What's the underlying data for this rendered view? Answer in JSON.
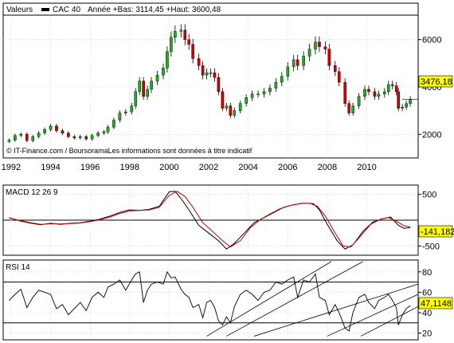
{
  "header": {
    "valeurs_label": "Valeurs",
    "series_name": "CAC 40",
    "range_text": "Année +Bas: 3114,45 +Haut: 3600,48"
  },
  "footer_note": "© IT-Finance.com / BoursoramaLes informations sont données à titre indicatif",
  "colors": {
    "up": "#22aa22",
    "down": "#cc0000",
    "signal": "#cc0000",
    "line": "#000000",
    "badge": "#ffff00"
  },
  "chart_data": [
    {
      "type": "candlestick",
      "title": "CAC 40",
      "x_ticks": [
        "1992",
        "1994",
        "1996",
        "1998",
        "2000",
        "2002",
        "2004",
        "2006",
        "2008",
        "2010"
      ],
      "y_ticks": [
        "2000",
        "4000",
        "6000"
      ],
      "ylim": [
        1000,
        7000
      ],
      "last_value": "3476,18",
      "series": [
        {
          "name": "CAC 40",
          "points": [
            [
              1991.9,
              1750
            ],
            [
              1992.2,
              1950
            ],
            [
              1992.5,
              2000
            ],
            [
              1992.8,
              1730
            ],
            [
              1993.1,
              1900
            ],
            [
              1993.4,
              2050
            ],
            [
              1993.7,
              2200
            ],
            [
              1994.0,
              2350
            ],
            [
              1994.3,
              2150
            ],
            [
              1994.6,
              2050
            ],
            [
              1994.9,
              1900
            ],
            [
              1995.2,
              1850
            ],
            [
              1995.5,
              1900
            ],
            [
              1995.8,
              1800
            ],
            [
              1996.1,
              1950
            ],
            [
              1996.4,
              2050
            ],
            [
              1996.7,
              2100
            ],
            [
              1996.9,
              2300
            ],
            [
              1997.2,
              2600
            ],
            [
              1997.5,
              2900
            ],
            [
              1997.8,
              2950
            ],
            [
              1998.1,
              3200
            ],
            [
              1998.3,
              3800
            ],
            [
              1998.5,
              4250
            ],
            [
              1998.7,
              3600
            ],
            [
              1998.9,
              3900
            ],
            [
              1999.1,
              4250
            ],
            [
              1999.4,
              4500
            ],
            [
              1999.7,
              4800
            ],
            [
              1999.9,
              5500
            ],
            [
              2000.1,
              6100
            ],
            [
              2000.3,
              6350
            ],
            [
              2000.6,
              6400
            ],
            [
              2000.8,
              6000
            ],
            [
              2001.0,
              5800
            ],
            [
              2001.2,
              5200
            ],
            [
              2001.5,
              4900
            ],
            [
              2001.7,
              4500
            ],
            [
              2001.9,
              4600
            ],
            [
              2002.1,
              4600
            ],
            [
              2002.3,
              4400
            ],
            [
              2002.5,
              3800
            ],
            [
              2002.7,
              3100
            ],
            [
              2002.9,
              3200
            ],
            [
              2003.1,
              2800
            ],
            [
              2003.3,
              3000
            ],
            [
              2003.6,
              3300
            ],
            [
              2003.9,
              3550
            ],
            [
              2004.2,
              3700
            ],
            [
              2004.5,
              3700
            ],
            [
              2004.8,
              3800
            ],
            [
              2005.1,
              3950
            ],
            [
              2005.4,
              4200
            ],
            [
              2005.7,
              4450
            ],
            [
              2006.0,
              4850
            ],
            [
              2006.3,
              5150
            ],
            [
              2006.5,
              4900
            ],
            [
              2006.8,
              5300
            ],
            [
              2007.1,
              5600
            ],
            [
              2007.4,
              5900
            ],
            [
              2007.6,
              5700
            ],
            [
              2007.9,
              5600
            ],
            [
              2008.1,
              4900
            ],
            [
              2008.4,
              4650
            ],
            [
              2008.6,
              4200
            ],
            [
              2008.9,
              3300
            ],
            [
              2009.1,
              2900
            ],
            [
              2009.3,
              3200
            ],
            [
              2009.6,
              3600
            ],
            [
              2009.9,
              3900
            ],
            [
              2010.1,
              3800
            ],
            [
              2010.4,
              3600
            ],
            [
              2010.6,
              3700
            ],
            [
              2010.9,
              3800
            ],
            [
              2011.1,
              4100
            ],
            [
              2011.3,
              4050
            ],
            [
              2011.5,
              3800
            ],
            [
              2011.6,
              3100
            ],
            [
              2011.8,
              3150
            ],
            [
              2012.0,
              3300
            ],
            [
              2012.2,
              3476
            ]
          ]
        }
      ]
    },
    {
      "type": "line",
      "title": "MACD 12 26 9",
      "y_ticks": [
        "500",
        "0",
        "-500"
      ],
      "ylim": [
        -650,
        650
      ],
      "last_value": "-141,182",
      "series": [
        {
          "name": "MACD",
          "points": [
            [
              1991.9,
              50
            ],
            [
              1992.5,
              -20
            ],
            [
              1993.0,
              -60
            ],
            [
              1993.5,
              -90
            ],
            [
              1994.0,
              -60
            ],
            [
              1994.5,
              -80
            ],
            [
              1995.0,
              -60
            ],
            [
              1995.5,
              -50
            ],
            [
              1996.0,
              -20
            ],
            [
              1996.5,
              20
            ],
            [
              1997.0,
              80
            ],
            [
              1997.5,
              150
            ],
            [
              1998.0,
              200
            ],
            [
              1998.5,
              190
            ],
            [
              1999.0,
              210
            ],
            [
              1999.5,
              270
            ],
            [
              2000.0,
              550
            ],
            [
              2000.3,
              560
            ],
            [
              2000.6,
              420
            ],
            [
              2001.0,
              200
            ],
            [
              2001.5,
              -100
            ],
            [
              2002.0,
              -250
            ],
            [
              2002.5,
              -400
            ],
            [
              2002.9,
              -560
            ],
            [
              2003.3,
              -450
            ],
            [
              2003.8,
              -250
            ],
            [
              2004.3,
              -50
            ],
            [
              2004.8,
              50
            ],
            [
              2005.3,
              150
            ],
            [
              2005.8,
              250
            ],
            [
              2006.3,
              300
            ],
            [
              2006.8,
              330
            ],
            [
              2007.3,
              320
            ],
            [
              2007.6,
              200
            ],
            [
              2008.0,
              -80
            ],
            [
              2008.5,
              -400
            ],
            [
              2008.9,
              -560
            ],
            [
              2009.3,
              -480
            ],
            [
              2009.8,
              -220
            ],
            [
              2010.3,
              -40
            ],
            [
              2010.8,
              30
            ],
            [
              2011.2,
              60
            ],
            [
              2011.6,
              -100
            ],
            [
              2011.9,
              -160
            ],
            [
              2012.2,
              -141
            ]
          ]
        },
        {
          "name": "Signal",
          "points": [
            [
              1991.9,
              40
            ],
            [
              1992.5,
              -10
            ],
            [
              1993.0,
              -50
            ],
            [
              1993.5,
              -80
            ],
            [
              1994.0,
              -70
            ],
            [
              1994.5,
              -75
            ],
            [
              1995.0,
              -65
            ],
            [
              1995.5,
              -55
            ],
            [
              1996.0,
              -30
            ],
            [
              1996.5,
              10
            ],
            [
              1997.0,
              60
            ],
            [
              1997.5,
              130
            ],
            [
              1998.0,
              180
            ],
            [
              1998.5,
              190
            ],
            [
              1999.0,
              200
            ],
            [
              1999.5,
              250
            ],
            [
              2000.0,
              480
            ],
            [
              2000.4,
              560
            ],
            [
              2000.8,
              460
            ],
            [
              2001.2,
              250
            ],
            [
              2001.7,
              -50
            ],
            [
              2002.2,
              -220
            ],
            [
              2002.7,
              -400
            ],
            [
              2003.1,
              -520
            ],
            [
              2003.6,
              -400
            ],
            [
              2004.1,
              -150
            ],
            [
              2004.6,
              10
            ],
            [
              2005.1,
              120
            ],
            [
              2005.6,
              220
            ],
            [
              2006.1,
              280
            ],
            [
              2006.6,
              320
            ],
            [
              2007.1,
              330
            ],
            [
              2007.5,
              270
            ],
            [
              2007.9,
              80
            ],
            [
              2008.4,
              -250
            ],
            [
              2008.8,
              -500
            ],
            [
              2009.2,
              -520
            ],
            [
              2009.7,
              -300
            ],
            [
              2010.2,
              -80
            ],
            [
              2010.7,
              20
            ],
            [
              2011.1,
              50
            ],
            [
              2011.5,
              -20
            ],
            [
              2011.9,
              -110
            ],
            [
              2012.2,
              -130
            ]
          ]
        }
      ]
    },
    {
      "type": "line",
      "title": "RSI 14",
      "y_ticks": [
        "80",
        "60",
        "40",
        "20"
      ],
      "ylim": [
        15,
        90
      ],
      "last_value": "47,1148",
      "series": [
        {
          "name": "RSI 14",
          "points": [
            [
              1991.9,
              52
            ],
            [
              1992.2,
              58
            ],
            [
              1992.5,
              63
            ],
            [
              1992.8,
              45
            ],
            [
              1993.1,
              55
            ],
            [
              1993.4,
              62
            ],
            [
              1993.7,
              60
            ],
            [
              1994.0,
              58
            ],
            [
              1994.3,
              44
            ],
            [
              1994.6,
              48
            ],
            [
              1994.9,
              38
            ],
            [
              1995.2,
              44
            ],
            [
              1995.5,
              50
            ],
            [
              1995.8,
              42
            ],
            [
              1996.1,
              55
            ],
            [
              1996.4,
              60
            ],
            [
              1996.7,
              55
            ],
            [
              1996.9,
              65
            ],
            [
              1997.2,
              68
            ],
            [
              1997.5,
              72
            ],
            [
              1997.8,
              62
            ],
            [
              1998.1,
              72
            ],
            [
              1998.3,
              78
            ],
            [
              1998.5,
              80
            ],
            [
              1998.7,
              50
            ],
            [
              1998.9,
              62
            ],
            [
              1999.1,
              68
            ],
            [
              1999.4,
              70
            ],
            [
              1999.7,
              68
            ],
            [
              1999.9,
              80
            ],
            [
              2000.1,
              74
            ],
            [
              2000.3,
              75
            ],
            [
              2000.6,
              63
            ],
            [
              2000.8,
              58
            ],
            [
              2001.0,
              55
            ],
            [
              2001.2,
              45
            ],
            [
              2001.5,
              48
            ],
            [
              2001.7,
              35
            ],
            [
              2001.9,
              50
            ],
            [
              2002.1,
              52
            ],
            [
              2002.3,
              45
            ],
            [
              2002.5,
              32
            ],
            [
              2002.7,
              28
            ],
            [
              2002.9,
              36
            ],
            [
              2003.1,
              30
            ],
            [
              2003.3,
              46
            ],
            [
              2003.6,
              58
            ],
            [
              2003.9,
              62
            ],
            [
              2004.2,
              58
            ],
            [
              2004.5,
              52
            ],
            [
              2004.8,
              60
            ],
            [
              2005.1,
              62
            ],
            [
              2005.4,
              70
            ],
            [
              2005.7,
              68
            ],
            [
              2006.0,
              72
            ],
            [
              2006.3,
              75
            ],
            [
              2006.5,
              55
            ],
            [
              2006.8,
              72
            ],
            [
              2007.1,
              70
            ],
            [
              2007.4,
              78
            ],
            [
              2007.6,
              55
            ],
            [
              2007.9,
              52
            ],
            [
              2008.1,
              38
            ],
            [
              2008.4,
              48
            ],
            [
              2008.6,
              40
            ],
            [
              2008.9,
              25
            ],
            [
              2009.1,
              22
            ],
            [
              2009.3,
              40
            ],
            [
              2009.6,
              55
            ],
            [
              2009.9,
              58
            ],
            [
              2010.1,
              50
            ],
            [
              2010.4,
              44
            ],
            [
              2010.6,
              52
            ],
            [
              2010.9,
              55
            ],
            [
              2011.1,
              58
            ],
            [
              2011.3,
              52
            ],
            [
              2011.5,
              45
            ],
            [
              2011.6,
              28
            ],
            [
              2011.8,
              38
            ],
            [
              2012.0,
              44
            ],
            [
              2012.2,
              47
            ]
          ]
        }
      ]
    }
  ]
}
